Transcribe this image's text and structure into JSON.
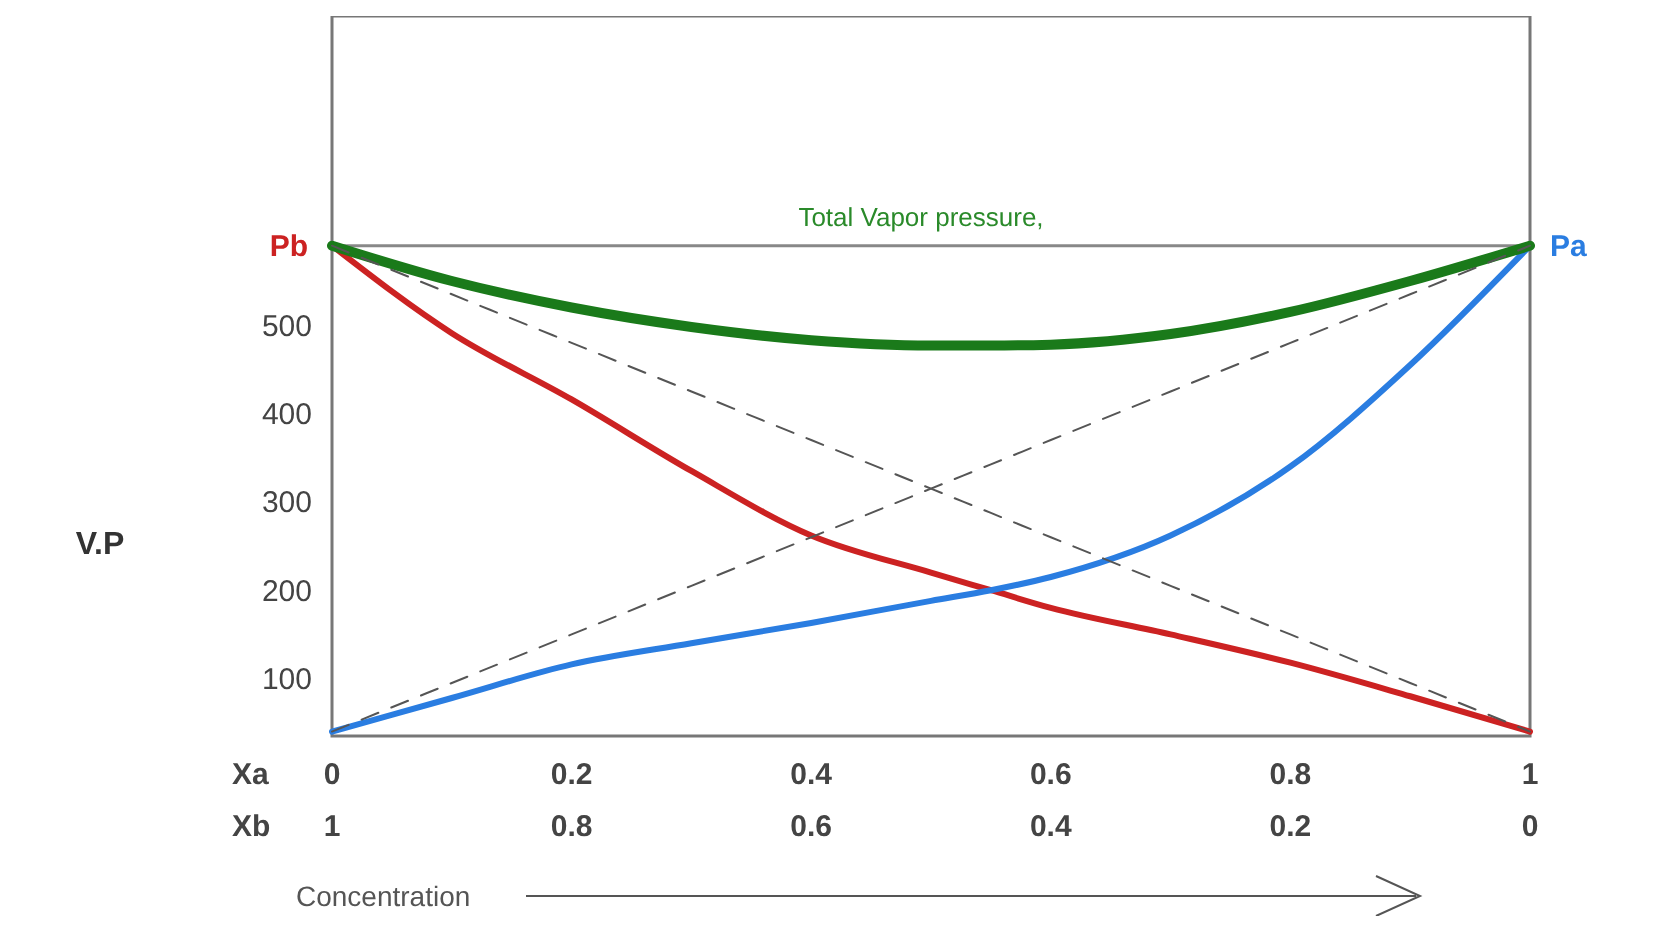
{
  "chart_data": {
    "type": "line",
    "xlabel": "Xa",
    "x2label": "Xb",
    "ylabel": "V.P",
    "x": [
      0,
      0.1,
      0.2,
      0.3,
      0.4,
      0.5,
      0.55,
      0.6,
      0.7,
      0.8,
      0.9,
      1
    ],
    "xlim": [
      0,
      1
    ],
    "xticks": [
      0,
      0.2,
      0.4,
      0.6,
      0.8,
      1
    ],
    "x2lim": [
      1,
      0
    ],
    "x2ticks": [
      1,
      0.8,
      0.6,
      0.4,
      0.2,
      0
    ],
    "ylim": [
      35,
      850
    ],
    "yticks": [
      100,
      200,
      300,
      400,
      500
    ],
    "grid": false,
    "series": [
      {
        "color": "#cc2222",
        "values": [
          590,
          491,
          416,
          335,
          262,
          220,
          200,
          180,
          150,
          118,
          80,
          40
        ]
      },
      {
        "color": "#2a7de1",
        "values": [
          40,
          78,
          116,
          140,
          163,
          188,
          200,
          215,
          262,
          340,
          455,
          590
        ]
      },
      {
        "color": "#1a7a1a",
        "values": [
          590,
          550,
          520,
          498,
          483,
          477,
          477,
          478,
          490,
          515,
          550,
          590
        ]
      },
      {
        "color": "#555555",
        "line_style": "dashed",
        "values": [
          590,
          535,
          480,
          425,
          370,
          315,
          287.5,
          260,
          205,
          150,
          95,
          40
        ]
      },
      {
        "color": "#555555",
        "line_style": "dashed",
        "values": [
          40,
          95,
          150,
          205,
          260,
          315,
          342.5,
          370,
          425,
          480,
          535,
          590
        ]
      }
    ],
    "ref_lines": [
      {
        "axis": "y",
        "value": 590,
        "label": "Total Vapor pressure,",
        "color": "#888888"
      }
    ],
    "annotations": [
      {
        "text": "Pb",
        "x": 0,
        "y": 590
      },
      {
        "text": "Pa",
        "x": 1,
        "y": 590
      },
      "Concentration"
    ]
  }
}
